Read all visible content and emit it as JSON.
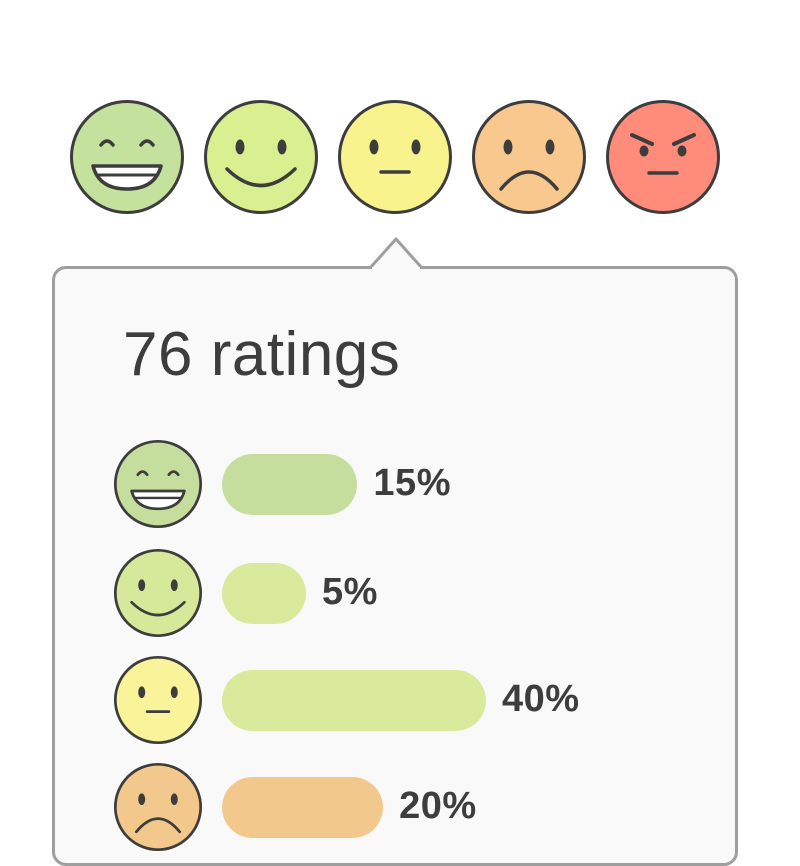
{
  "colors": {
    "very_happy": "#c4e29e",
    "happy": "#daef90",
    "neutral": "#f9f38e",
    "sad": "#f8c88e",
    "angry": "#ff8c7a",
    "bar_very_happy": "#c5de9e",
    "bar_happy": "#daea9c",
    "bar_sad": "#f3c88c"
  },
  "rating_options": [
    {
      "icon": "very-happy-face-icon"
    },
    {
      "icon": "happy-face-icon"
    },
    {
      "icon": "neutral-face-icon"
    },
    {
      "icon": "sad-face-icon"
    },
    {
      "icon": "angry-face-icon"
    }
  ],
  "popover": {
    "title": "76 ratings",
    "breakdown": [
      {
        "icon": "very-happy-face-icon",
        "percent": 15,
        "label": "15%"
      },
      {
        "icon": "happy-face-icon",
        "percent": 5,
        "label": "5%"
      },
      {
        "icon": "neutral-face-icon",
        "percent": 40,
        "label": "40%"
      },
      {
        "icon": "sad-face-icon",
        "percent": 20,
        "label": "20%"
      }
    ]
  }
}
